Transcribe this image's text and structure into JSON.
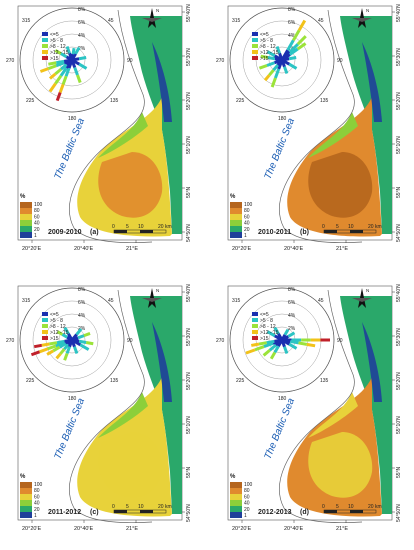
{
  "figure": {
    "panels": [
      {
        "letter": "(a)",
        "period": "2009-2010",
        "sea_label": "The Baltic Sea",
        "wind_legend": [
          "<=5",
          ">5 - 8",
          ">8 - 12",
          ">12 - 15",
          ">15"
        ],
        "rose_directions": [
          "0",
          "45",
          "90",
          "135",
          "180",
          "225",
          "270",
          "315"
        ],
        "rose_rings": [
          "2%",
          "4%",
          "6%",
          "8%"
        ],
        "lat_ticks": [
          "55°40'N",
          "55°30'N",
          "55°20'N",
          "55°10'N",
          "55°N",
          "54°50'N"
        ],
        "lon_ticks": [
          "20°20'E",
          "20°40'E",
          "21°E"
        ],
        "scale": [
          "0",
          "5",
          "10",
          "20 km"
        ],
        "colorbar": {
          "unit": "%",
          "ticks": [
            "100",
            "80",
            "60",
            "40",
            "20",
            "1"
          ]
        },
        "north": "N",
        "dominant": "heavy-south"
      },
      {
        "letter": "(b)",
        "period": "2010-2011",
        "sea_label": "The Baltic Sea",
        "wind_legend": [
          "<=5",
          ">5 - 8",
          ">8 - 12",
          ">12 - 15",
          ">15"
        ],
        "rose_directions": [
          "0",
          "45",
          "90",
          "135",
          "180",
          "225",
          "270",
          "315"
        ],
        "rose_rings": [
          "2%",
          "4%",
          "6%",
          "8%"
        ],
        "lat_ticks": [
          "55°40'N",
          "55°30'N",
          "55°20'N",
          "55°10'N",
          "55°N",
          "54°50'N"
        ],
        "lon_ticks": [
          "20°20'E",
          "20°40'E",
          "21°E"
        ],
        "scale": [
          "0",
          "5",
          "10",
          "20 km"
        ],
        "colorbar": {
          "unit": "%",
          "ticks": [
            "100",
            "80",
            "60",
            "40",
            "20",
            "1"
          ]
        },
        "north": "N",
        "dominant": "heavy-orange"
      },
      {
        "letter": "(c)",
        "period": "2011-2012",
        "sea_label": "The Baltic Sea",
        "wind_legend": [
          "<=5",
          ">5 - 8",
          ">8 - 12",
          ">12 - 15",
          ">15"
        ],
        "rose_directions": [
          "0",
          "45",
          "90",
          "135",
          "180",
          "225",
          "270",
          "315"
        ],
        "rose_rings": [
          "2%",
          "4%",
          "6%",
          "8%"
        ],
        "lat_ticks": [
          "55°40'N",
          "55°30'N",
          "55°20'N",
          "55°10'N",
          "55°N",
          "54°50'N"
        ],
        "lon_ticks": [
          "20°20'E",
          "20°40'E",
          "21°E"
        ],
        "scale": [
          "0",
          "5",
          "10",
          "20 km"
        ],
        "colorbar": {
          "unit": "%",
          "ticks": [
            "100",
            "80",
            "60",
            "40",
            "20",
            "1"
          ]
        },
        "north": "N",
        "dominant": "yellow"
      },
      {
        "letter": "(d)",
        "period": "2012-2013",
        "sea_label": "The Baltic Sea",
        "wind_legend": [
          "<=5",
          ">5 - 8",
          ">8 - 12",
          ">12 - 15",
          ">15"
        ],
        "rose_directions": [
          "0",
          "45",
          "90",
          "135",
          "180",
          "225",
          "270",
          "315"
        ],
        "rose_rings": [
          "2%",
          "4%",
          "6%",
          "8%"
        ],
        "lat_ticks": [
          "55°40'N",
          "55°30'N",
          "55°20'N",
          "55°10'N",
          "55°N",
          "54°50'N"
        ],
        "lon_ticks": [
          "20°20'E",
          "20°40'E",
          "21°E"
        ],
        "scale": [
          "0",
          "5",
          "10",
          "20 km"
        ],
        "colorbar": {
          "unit": "%",
          "ticks": [
            "100",
            "80",
            "60",
            "40",
            "20",
            "1"
          ]
        },
        "north": "N",
        "dominant": "orange-yellow"
      }
    ],
    "colors": {
      "c100": "#b5651d",
      "c80": "#e08a2e",
      "c60": "#e8d23a",
      "c40": "#8ccf3a",
      "c20": "#2aa86a",
      "c1": "#1f3f9a",
      "wind1": "#1a2fb0",
      "wind2": "#2bc4c4",
      "wind3": "#9be33a",
      "wind4": "#f2c21a",
      "wind5": "#c0202a",
      "sea_text": "#1d5fb5"
    }
  }
}
